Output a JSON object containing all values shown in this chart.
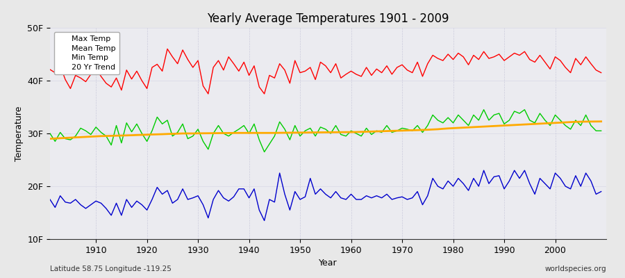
{
  "title": "Yearly Average Temperatures 1901 - 2009",
  "xlabel": "Year",
  "ylabel": "Temperature",
  "lat_label": "Latitude 58.75 Longitude -119.25",
  "source_label": "worldspecies.org",
  "fig_bg_color": "#e8e8e8",
  "plot_bg_color": "#ebebf0",
  "grid_color": "#ccccdd",
  "ylim": [
    10,
    50
  ],
  "yticks": [
    10,
    20,
    30,
    40,
    50
  ],
  "ytick_labels": [
    "10F",
    "20F",
    "30F",
    "40F",
    "50F"
  ],
  "year_start": 1901,
  "year_end": 2009,
  "max_temp_color": "#ff0000",
  "mean_temp_color": "#00cc00",
  "min_temp_color": "#0000cc",
  "trend_color": "#ffaa00",
  "trend_linewidth": 2.0,
  "line_linewidth": 1.0,
  "legend_labels": [
    "Max Temp",
    "Mean Temp",
    "Min Temp",
    "20 Yr Trend"
  ],
  "max_temps": [
    42.1,
    41.5,
    42.8,
    40.2,
    38.5,
    41.0,
    40.5,
    39.8,
    41.2,
    42.3,
    40.8,
    39.5,
    38.8,
    40.5,
    38.2,
    42.0,
    40.3,
    41.8,
    40.0,
    38.5,
    42.5,
    43.1,
    41.8,
    46.0,
    44.5,
    43.2,
    45.8,
    44.0,
    42.5,
    43.8,
    39.0,
    37.5,
    42.5,
    43.8,
    42.0,
    44.5,
    43.2,
    41.8,
    43.5,
    41.0,
    42.8,
    38.8,
    37.5,
    41.0,
    40.5,
    43.2,
    42.0,
    39.5,
    43.8,
    41.5,
    41.8,
    42.5,
    40.2,
    43.5,
    42.8,
    41.5,
    43.2,
    40.5,
    41.2,
    41.8,
    41.2,
    40.8,
    42.5,
    41.0,
    42.2,
    41.5,
    42.8,
    41.2,
    42.5,
    43.0,
    42.0,
    41.5,
    43.5,
    40.8,
    43.2,
    44.8,
    44.2,
    43.8,
    45.0,
    44.0,
    45.2,
    44.5,
    43.0,
    44.8,
    44.0,
    45.5,
    44.2,
    44.5,
    45.0,
    43.8,
    44.5,
    45.2,
    44.8,
    45.5,
    44.0,
    43.5,
    44.8,
    43.5,
    42.2,
    44.5,
    43.8,
    42.5,
    41.5,
    44.2,
    43.0,
    44.5,
    43.2,
    42.0,
    41.5
  ],
  "mean_temps": [
    30.0,
    28.5,
    30.2,
    29.0,
    28.8,
    29.5,
    31.0,
    30.5,
    29.8,
    31.2,
    30.2,
    29.5,
    27.8,
    31.5,
    28.2,
    32.0,
    30.3,
    31.8,
    30.0,
    28.5,
    30.5,
    33.1,
    31.8,
    32.5,
    29.5,
    30.2,
    31.8,
    29.0,
    29.5,
    30.8,
    28.5,
    27.0,
    30.0,
    31.5,
    30.0,
    29.5,
    30.2,
    30.8,
    31.5,
    30.0,
    31.8,
    28.8,
    26.5,
    28.0,
    29.5,
    32.2,
    30.8,
    28.8,
    31.5,
    29.5,
    30.5,
    31.0,
    29.5,
    31.2,
    30.8,
    30.0,
    31.5,
    29.8,
    29.5,
    30.5,
    30.0,
    29.5,
    31.0,
    29.8,
    30.5,
    30.2,
    31.5,
    30.2,
    30.5,
    31.0,
    30.8,
    30.5,
    31.5,
    30.2,
    31.5,
    33.5,
    32.5,
    32.0,
    33.0,
    32.0,
    33.5,
    32.5,
    31.5,
    33.5,
    32.5,
    34.5,
    32.5,
    33.5,
    33.8,
    31.8,
    32.5,
    34.2,
    33.8,
    34.5,
    32.5,
    32.0,
    33.8,
    32.5,
    31.5,
    33.5,
    32.5,
    31.5,
    30.8,
    32.5,
    31.5,
    33.5,
    31.5,
    30.5,
    30.5
  ],
  "min_temps": [
    17.5,
    16.0,
    18.2,
    17.0,
    16.8,
    17.5,
    16.5,
    15.8,
    16.5,
    17.2,
    16.8,
    15.8,
    14.5,
    16.8,
    14.5,
    17.5,
    16.0,
    17.2,
    16.5,
    15.5,
    17.5,
    19.8,
    18.5,
    19.2,
    16.8,
    17.5,
    19.5,
    17.5,
    17.8,
    18.2,
    16.5,
    14.0,
    17.5,
    19.2,
    17.8,
    17.2,
    18.0,
    19.5,
    19.5,
    17.8,
    19.5,
    15.5,
    13.5,
    17.5,
    17.0,
    22.5,
    18.5,
    15.5,
    19.0,
    17.5,
    18.0,
    21.5,
    18.5,
    19.5,
    18.5,
    17.8,
    19.0,
    17.8,
    17.5,
    18.5,
    17.5,
    17.5,
    18.2,
    17.8,
    18.2,
    17.8,
    18.5,
    17.5,
    17.8,
    18.0,
    17.5,
    17.8,
    19.0,
    16.5,
    18.2,
    21.5,
    20.0,
    19.5,
    21.0,
    20.0,
    21.5,
    20.5,
    19.2,
    21.5,
    20.0,
    23.0,
    20.5,
    21.8,
    22.0,
    19.5,
    21.0,
    23.0,
    21.5,
    23.0,
    20.5,
    18.5,
    21.5,
    20.5,
    19.5,
    22.5,
    21.5,
    20.0,
    19.5,
    22.0,
    20.0,
    22.5,
    21.0,
    18.5,
    19.0
  ],
  "trend_temps": [
    29.0,
    29.05,
    29.1,
    29.15,
    29.2,
    29.25,
    29.3,
    29.35,
    29.4,
    29.45,
    29.5,
    29.52,
    29.55,
    29.58,
    29.6,
    29.63,
    29.66,
    29.7,
    29.73,
    29.76,
    29.8,
    29.83,
    29.86,
    29.9,
    29.93,
    29.96,
    30.0,
    30.0,
    30.0,
    30.02,
    30.03,
    30.04,
    30.05,
    30.06,
    30.07,
    30.08,
    30.09,
    30.1,
    30.1,
    30.1,
    30.1,
    30.1,
    30.1,
    30.1,
    30.1,
    30.12,
    30.13,
    30.14,
    30.15,
    30.16,
    30.17,
    30.18,
    30.19,
    30.2,
    30.21,
    30.22,
    30.23,
    30.24,
    30.25,
    30.26,
    30.27,
    30.3,
    30.33,
    30.36,
    30.39,
    30.42,
    30.45,
    30.48,
    30.51,
    30.54,
    30.57,
    30.6,
    30.63,
    30.66,
    30.7,
    30.75,
    30.8,
    30.88,
    30.95,
    31.0,
    31.05,
    31.1,
    31.15,
    31.2,
    31.25,
    31.3,
    31.35,
    31.4,
    31.45,
    31.5,
    31.55,
    31.6,
    31.65,
    31.7,
    31.75,
    31.8,
    31.85,
    31.9,
    31.95,
    32.0,
    32.05,
    32.1,
    32.15,
    32.2,
    32.22,
    32.24,
    32.25,
    32.26,
    32.27
  ]
}
